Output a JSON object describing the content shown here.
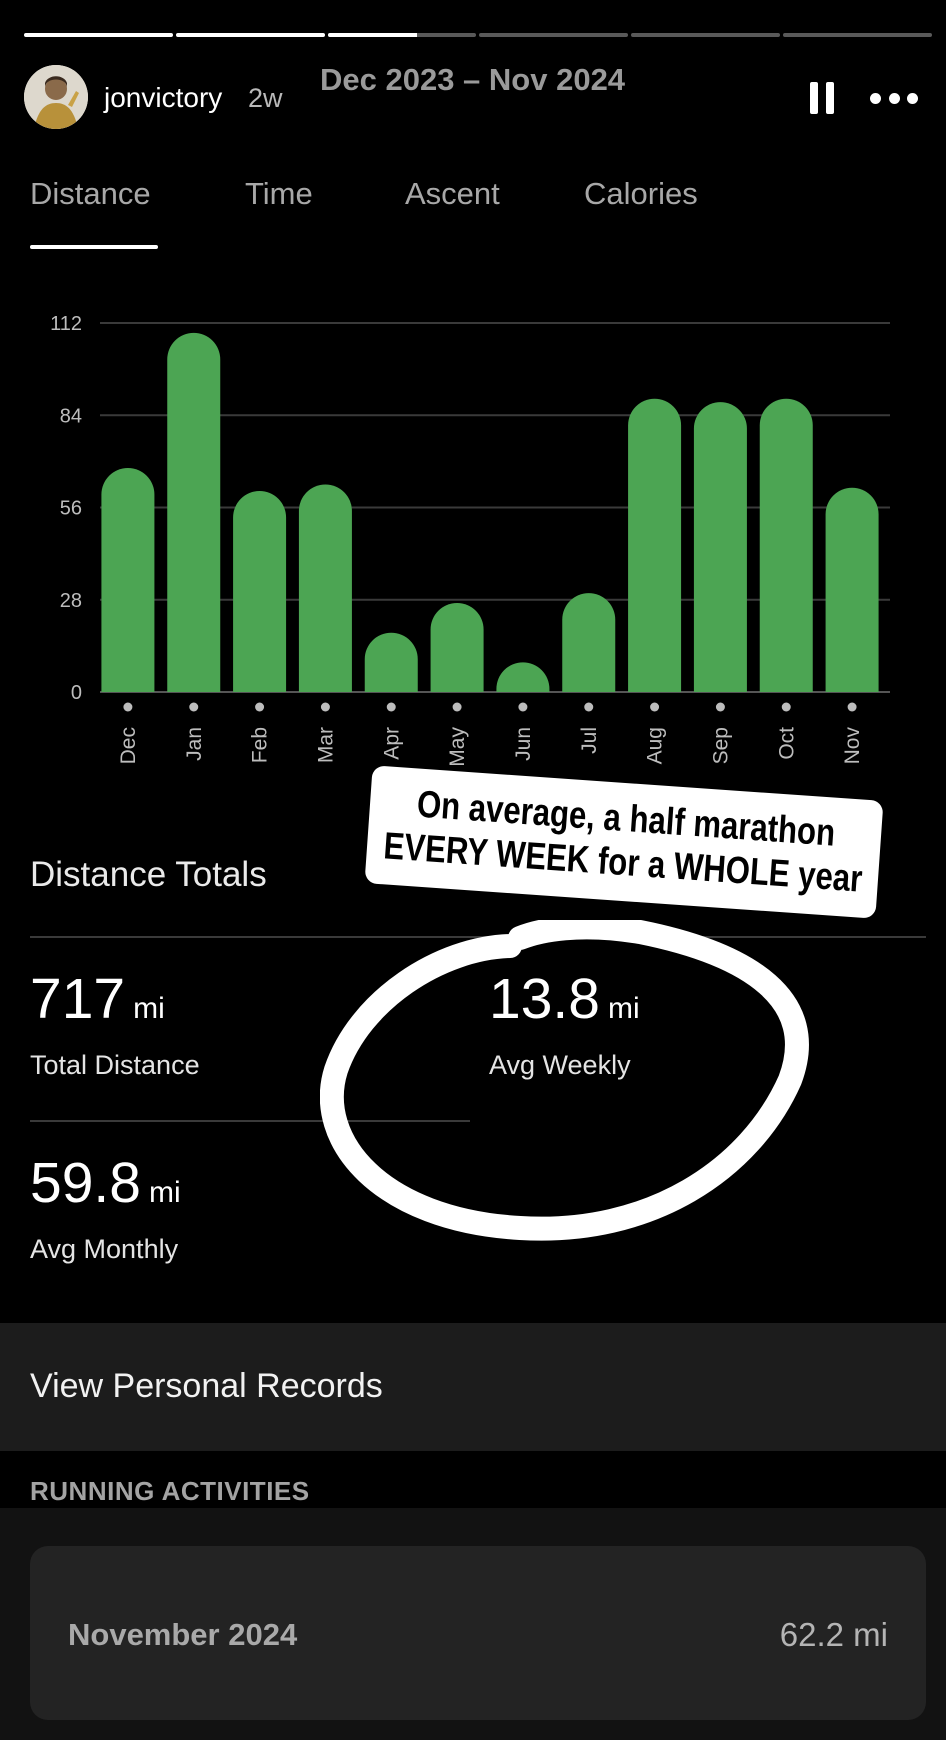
{
  "story": {
    "username": "jonvictory",
    "age": "2w",
    "date_range": "Dec 2023 – Nov 2024",
    "segments": [
      1,
      1,
      0.6,
      0,
      0,
      0
    ]
  },
  "tabs": [
    {
      "label": "Distance",
      "active": true
    },
    {
      "label": "Time",
      "active": false
    },
    {
      "label": "Ascent",
      "active": false
    },
    {
      "label": "Calories",
      "active": false
    }
  ],
  "chart_data": {
    "type": "bar",
    "categories": [
      "Dec",
      "Jan",
      "Feb",
      "Mar",
      "Apr",
      "May",
      "Jun",
      "Jul",
      "Aug",
      "Sep",
      "Oct",
      "Nov"
    ],
    "values": [
      68,
      109,
      61,
      63,
      18,
      27,
      9,
      30,
      89,
      88,
      89,
      62
    ],
    "yticks": [
      0,
      28,
      56,
      84,
      112
    ],
    "ylim": [
      0,
      112
    ],
    "bar_color": "#4ca553",
    "grid": true
  },
  "totals": {
    "title": "Distance Totals",
    "total_distance": {
      "value": "717",
      "unit": "mi",
      "label": "Total Distance"
    },
    "avg_weekly": {
      "value": "13.8",
      "unit": "mi",
      "label": "Avg Weekly"
    },
    "avg_monthly": {
      "value": "59.8",
      "unit": "mi",
      "label": "Avg Monthly"
    }
  },
  "annotation": {
    "line1": "On average, a half marathon",
    "line2": "EVERY WEEK for a WHOLE year"
  },
  "records": {
    "label": "View Personal Records"
  },
  "running": {
    "section_label": "RUNNING ACTIVITIES",
    "month": "November 2024",
    "distance": "62.2 mi"
  }
}
